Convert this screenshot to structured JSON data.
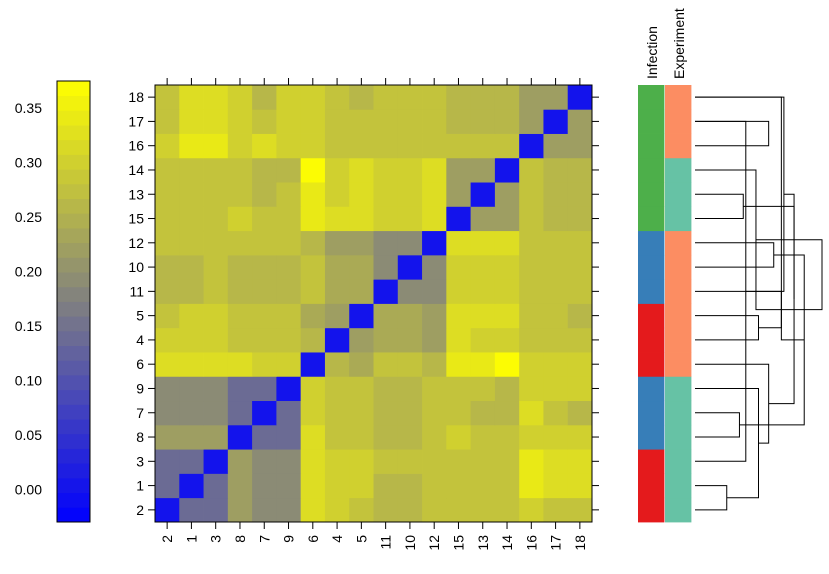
{
  "chart_data": {
    "type": "heatmap",
    "title": "",
    "order": [
      "2",
      "1",
      "3",
      "8",
      "7",
      "9",
      "6",
      "4",
      "5",
      "11",
      "10",
      "12",
      "15",
      "13",
      "14",
      "16",
      "17",
      "18"
    ],
    "values": [
      [
        0.0,
        0.14,
        0.14,
        0.22,
        0.19,
        0.19,
        0.32,
        0.3,
        0.28,
        0.26,
        0.26,
        0.28,
        0.28,
        0.28,
        0.28,
        0.3,
        0.28,
        0.28
      ],
      [
        0.14,
        0.0,
        0.14,
        0.22,
        0.19,
        0.19,
        0.32,
        0.3,
        0.3,
        0.26,
        0.26,
        0.28,
        0.28,
        0.28,
        0.28,
        0.34,
        0.32,
        0.32
      ],
      [
        0.14,
        0.14,
        0.0,
        0.22,
        0.19,
        0.19,
        0.32,
        0.3,
        0.3,
        0.28,
        0.28,
        0.28,
        0.28,
        0.28,
        0.28,
        0.34,
        0.32,
        0.32
      ],
      [
        0.22,
        0.22,
        0.22,
        0.0,
        0.14,
        0.14,
        0.32,
        0.28,
        0.28,
        0.26,
        0.26,
        0.28,
        0.3,
        0.28,
        0.28,
        0.3,
        0.3,
        0.3
      ],
      [
        0.19,
        0.19,
        0.19,
        0.14,
        0.0,
        0.14,
        0.3,
        0.28,
        0.28,
        0.26,
        0.26,
        0.28,
        0.28,
        0.26,
        0.26,
        0.32,
        0.28,
        0.26
      ],
      [
        0.19,
        0.19,
        0.19,
        0.14,
        0.14,
        0.0,
        0.3,
        0.28,
        0.28,
        0.26,
        0.26,
        0.28,
        0.28,
        0.28,
        0.26,
        0.3,
        0.3,
        0.3
      ],
      [
        0.32,
        0.32,
        0.32,
        0.32,
        0.3,
        0.3,
        0.0,
        0.26,
        0.24,
        0.28,
        0.28,
        0.26,
        0.34,
        0.34,
        0.37,
        0.3,
        0.3,
        0.3
      ],
      [
        0.3,
        0.3,
        0.3,
        0.28,
        0.28,
        0.28,
        0.26,
        0.0,
        0.22,
        0.24,
        0.24,
        0.22,
        0.32,
        0.3,
        0.3,
        0.28,
        0.28,
        0.28
      ],
      [
        0.28,
        0.3,
        0.3,
        0.28,
        0.28,
        0.28,
        0.24,
        0.22,
        0.0,
        0.24,
        0.24,
        0.22,
        0.32,
        0.32,
        0.32,
        0.28,
        0.28,
        0.26
      ],
      [
        0.26,
        0.26,
        0.28,
        0.26,
        0.26,
        0.26,
        0.28,
        0.24,
        0.24,
        0.0,
        0.19,
        0.19,
        0.3,
        0.3,
        0.3,
        0.28,
        0.28,
        0.28
      ],
      [
        0.26,
        0.26,
        0.28,
        0.26,
        0.26,
        0.26,
        0.28,
        0.24,
        0.24,
        0.19,
        0.0,
        0.19,
        0.3,
        0.3,
        0.3,
        0.28,
        0.28,
        0.28
      ],
      [
        0.28,
        0.28,
        0.28,
        0.28,
        0.28,
        0.28,
        0.26,
        0.22,
        0.22,
        0.19,
        0.19,
        0.0,
        0.32,
        0.32,
        0.32,
        0.28,
        0.28,
        0.28
      ],
      [
        0.28,
        0.28,
        0.28,
        0.3,
        0.28,
        0.28,
        0.34,
        0.32,
        0.32,
        0.3,
        0.3,
        0.32,
        0.0,
        0.22,
        0.22,
        0.28,
        0.26,
        0.26
      ],
      [
        0.28,
        0.28,
        0.28,
        0.28,
        0.26,
        0.28,
        0.34,
        0.3,
        0.32,
        0.3,
        0.3,
        0.32,
        0.22,
        0.0,
        0.22,
        0.28,
        0.26,
        0.26
      ],
      [
        0.28,
        0.28,
        0.28,
        0.28,
        0.26,
        0.26,
        0.37,
        0.3,
        0.32,
        0.3,
        0.3,
        0.32,
        0.22,
        0.22,
        0.0,
        0.28,
        0.26,
        0.26
      ],
      [
        0.3,
        0.34,
        0.34,
        0.3,
        0.32,
        0.3,
        0.3,
        0.28,
        0.28,
        0.28,
        0.28,
        0.28,
        0.28,
        0.28,
        0.28,
        0.0,
        0.22,
        0.22
      ],
      [
        0.28,
        0.32,
        0.32,
        0.3,
        0.28,
        0.3,
        0.3,
        0.28,
        0.28,
        0.28,
        0.28,
        0.28,
        0.26,
        0.26,
        0.26,
        0.22,
        0.0,
        0.22
      ],
      [
        0.28,
        0.32,
        0.32,
        0.3,
        0.26,
        0.3,
        0.3,
        0.28,
        0.26,
        0.28,
        0.28,
        0.28,
        0.26,
        0.26,
        0.26,
        0.22,
        0.22,
        0.0
      ]
    ],
    "colorbar": {
      "range": [
        -0.03,
        0.375
      ],
      "ticks": [
        "0.00",
        "0.05",
        "0.10",
        "0.15",
        "0.20",
        "0.25",
        "0.30",
        "0.35"
      ],
      "low_color": "#0000ff",
      "mid_color": "#808080",
      "high_color": "#ffff00"
    },
    "annotation_columns": [
      {
        "label": "Infection",
        "colors": [
          "#e41a1c",
          "#e41a1c",
          "#e41a1c",
          "#377eb8",
          "#377eb8",
          "#377eb8",
          "#e41a1c",
          "#e41a1c",
          "#e41a1c",
          "#377eb8",
          "#377eb8",
          "#377eb8",
          "#4daf4a",
          "#4daf4a",
          "#4daf4a",
          "#4daf4a",
          "#4daf4a",
          "#4daf4a"
        ]
      },
      {
        "label": "Experiment",
        "colors": [
          "#66c2a5",
          "#66c2a5",
          "#66c2a5",
          "#66c2a5",
          "#66c2a5",
          "#66c2a5",
          "#fc8d62",
          "#fc8d62",
          "#fc8d62",
          "#fc8d62",
          "#fc8d62",
          "#fc8d62",
          "#66c2a5",
          "#66c2a5",
          "#66c2a5",
          "#fc8d62",
          "#fc8d62",
          "#fc8d62"
        ]
      }
    ],
    "dendrogram": [
      {
        "a": 0,
        "b": 1,
        "h": 0.25
      },
      {
        "a": 16,
        "b": 2,
        "h": 0.4
      },
      {
        "a": 3,
        "b": 4,
        "h": 0.35
      },
      {
        "a": 18,
        "b": 5,
        "h": 0.5
      },
      {
        "a": 17,
        "b": 19,
        "h": 0.7
      },
      {
        "a": 7,
        "b": 8,
        "h": 0.5
      },
      {
        "a": 6,
        "b": 21,
        "h": 0.58
      },
      {
        "a": 10,
        "b": 11,
        "h": 0.62
      },
      {
        "a": 9,
        "b": 23,
        "h": 0.68
      },
      {
        "a": 22,
        "b": 24,
        "h": 0.78
      },
      {
        "a": 20,
        "b": 25,
        "h": 0.86
      },
      {
        "a": 12,
        "b": 13,
        "h": 0.38
      },
      {
        "a": 26,
        "b": 14,
        "h": 0.48
      },
      {
        "a": 15,
        "b": 16,
        "h": 0.58
      },
      {
        "a": 28,
        "b": 17,
        "h": 0.68
      },
      {
        "a": 27,
        "b": 29,
        "h": 0.78
      },
      {
        "a": 26,
        "b": 30,
        "h": 1.0
      }
    ]
  }
}
